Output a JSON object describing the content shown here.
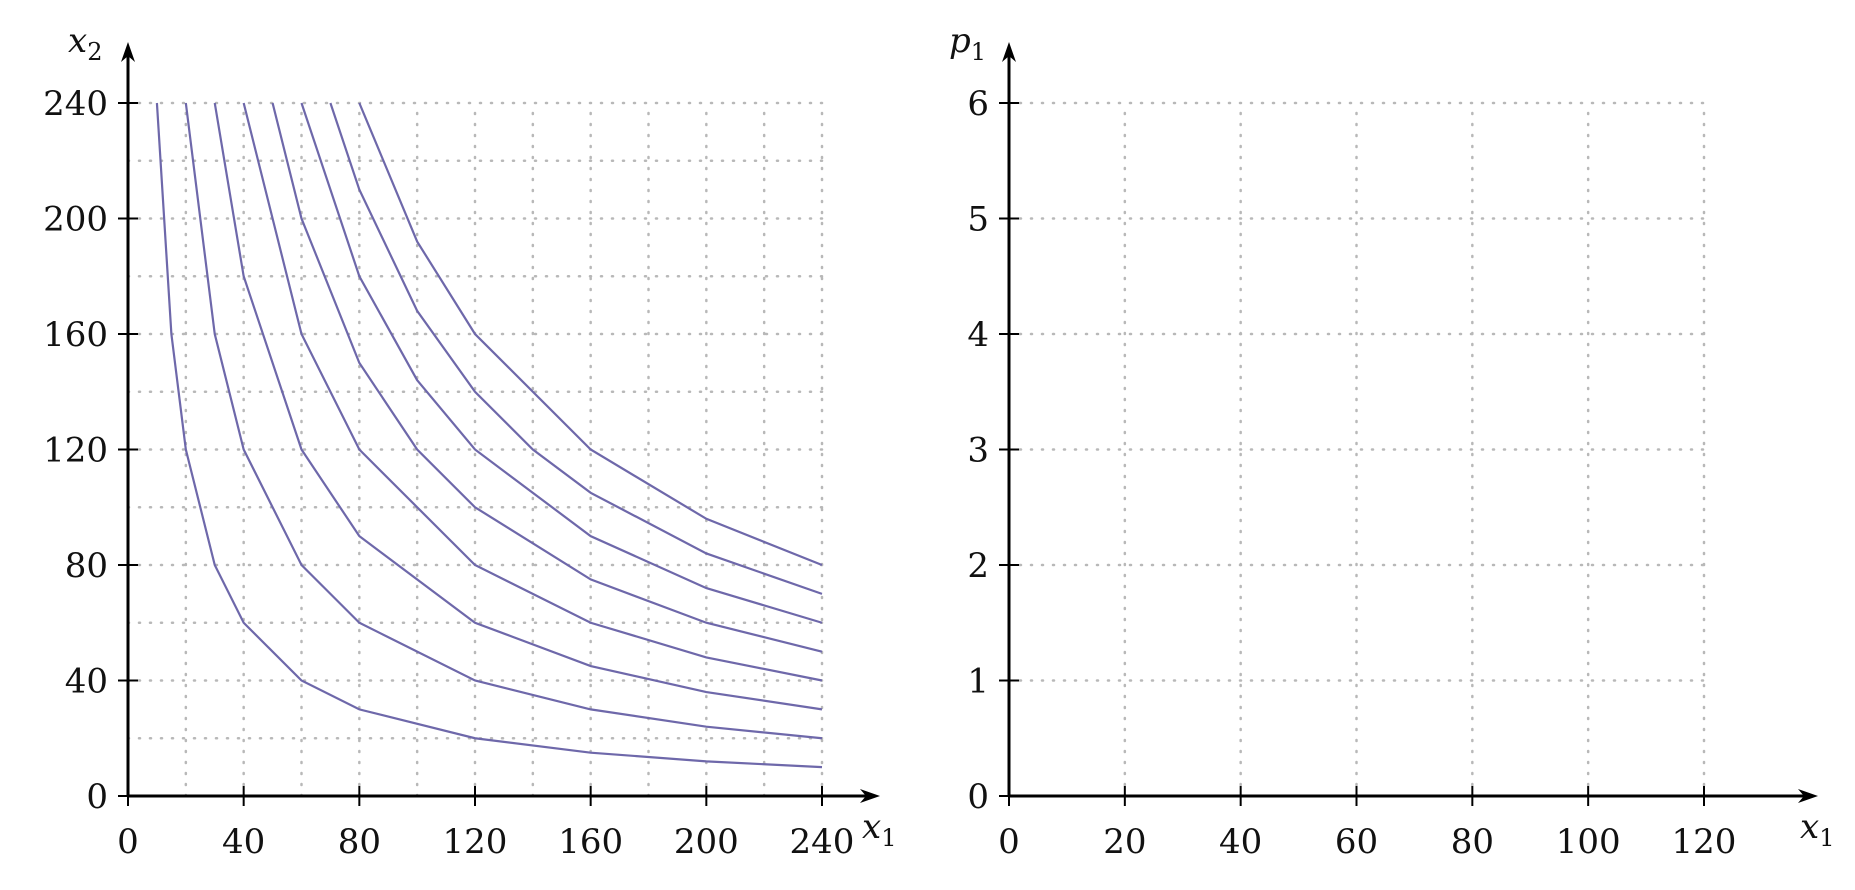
{
  "chart_data": [
    {
      "type": "line",
      "title": "",
      "xlabel": "x1",
      "ylabel": "x2",
      "xlim": [
        0,
        240
      ],
      "ylim": [
        0,
        240
      ],
      "x_ticks": [
        "0",
        "40",
        "80",
        "120",
        "160",
        "200",
        "240"
      ],
      "y_ticks": [
        "0",
        "40",
        "80",
        "120",
        "160",
        "200",
        "240"
      ],
      "grid": true,
      "grid_step": 20,
      "line_color": "#6e68aa",
      "series": [
        {
          "x": [
            10,
            15,
            20,
            30,
            40,
            60,
            80,
            120,
            160,
            200,
            240
          ],
          "y": [
            240,
            160,
            120,
            80,
            60,
            40,
            30,
            20,
            15,
            12,
            10
          ]
        },
        {
          "x": [
            20,
            30,
            40,
            60,
            80,
            120,
            160,
            200,
            240
          ],
          "y": [
            240,
            160,
            120,
            80,
            60,
            40,
            30,
            24,
            20
          ]
        },
        {
          "x": [
            30,
            40,
            60,
            80,
            120,
            160,
            200,
            240
          ],
          "y": [
            240,
            180,
            120,
            90,
            60,
            45,
            36,
            30
          ]
        },
        {
          "x": [
            40,
            60,
            80,
            120,
            160,
            200,
            240
          ],
          "y": [
            240,
            160,
            120,
            80,
            60,
            48,
            40
          ]
        },
        {
          "x": [
            50,
            60,
            80,
            100,
            120,
            160,
            200,
            240
          ],
          "y": [
            240,
            200,
            150,
            120,
            100,
            75,
            60,
            50
          ]
        },
        {
          "x": [
            60,
            80,
            100,
            120,
            160,
            200,
            240
          ],
          "y": [
            240,
            180,
            144,
            120,
            90,
            72,
            60
          ]
        },
        {
          "x": [
            70,
            80,
            100,
            120,
            140,
            160,
            200,
            240
          ],
          "y": [
            240,
            210,
            168,
            140,
            120,
            105,
            84,
            70
          ]
        },
        {
          "x": [
            80,
            100,
            120,
            160,
            200,
            240
          ],
          "y": [
            240,
            192,
            160,
            120,
            96,
            80
          ]
        }
      ]
    },
    {
      "type": "line",
      "title": "",
      "xlabel": "x1",
      "ylabel": "p1",
      "xlim": [
        0,
        120
      ],
      "ylim": [
        0,
        6
      ],
      "x_ticks": [
        "0",
        "20",
        "40",
        "60",
        "80",
        "100",
        "120"
      ],
      "y_ticks": [
        "0",
        "1",
        "2",
        "3",
        "4",
        "5",
        "6"
      ],
      "grid": true,
      "grid_step_x": 20,
      "grid_step_y": 1,
      "series": []
    }
  ]
}
